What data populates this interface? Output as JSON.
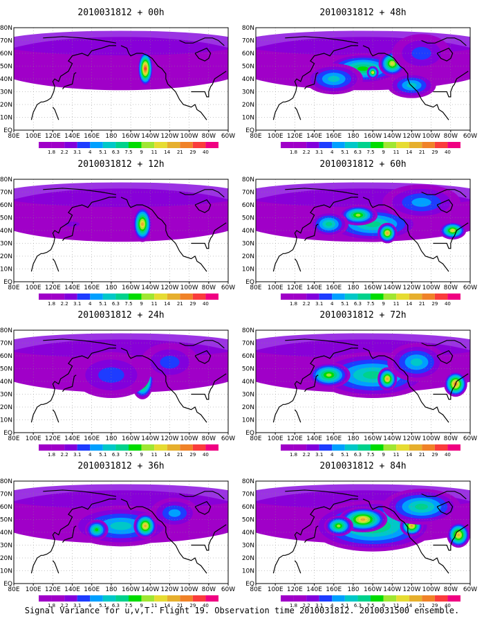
{
  "caption": "Signal Variance for u,v,T. Flight 19. Observation time 2010031812. 2010031500 ensemble.",
  "colorbar": {
    "labels": [
      "1.8",
      "2.2",
      "3.1",
      "4",
      "5.1",
      "6.3",
      "7.5",
      "9",
      "11",
      "14",
      "21",
      "29",
      "40"
    ],
    "colors": [
      "#a000c8",
      "#8200dc",
      "#1e3cff",
      "#00a0ff",
      "#00c8c8",
      "#00d28c",
      "#00dc00",
      "#a0e632",
      "#e6dc32",
      "#e6af2d",
      "#f08228",
      "#fa3c3c",
      "#f00082"
    ]
  },
  "axes": {
    "x_ticks": [
      "80E",
      "100E",
      "120E",
      "140E",
      "160E",
      "180",
      "160W",
      "140W",
      "120W",
      "100W",
      "80W",
      "60W"
    ],
    "y_ticks": [
      "EQ",
      "10N",
      "20N",
      "30N",
      "40N",
      "50N",
      "60N",
      "70N",
      "80N"
    ]
  },
  "chart_data": [
    {
      "type": "heatmap",
      "title": "2010031812 + 00h",
      "blobs": [
        {
          "lon": 215,
          "lat": 48,
          "rx": 8,
          "ry": 14,
          "level": 11
        }
      ]
    },
    {
      "type": "heatmap",
      "title": "2010031812 + 48h",
      "blobs": [
        {
          "lon": 190,
          "lat": 48,
          "rx": 40,
          "ry": 12,
          "level": 6
        },
        {
          "lon": 220,
          "lat": 52,
          "rx": 14,
          "ry": 10,
          "level": 8
        },
        {
          "lon": 200,
          "lat": 45,
          "rx": 6,
          "ry": 5,
          "level": 8
        },
        {
          "lon": 160,
          "lat": 40,
          "rx": 30,
          "ry": 12,
          "level": 4
        },
        {
          "lon": 240,
          "lat": 35,
          "rx": 25,
          "ry": 10,
          "level": 4
        },
        {
          "lon": 250,
          "lat": 60,
          "rx": 30,
          "ry": 15,
          "level": 2
        }
      ]
    },
    {
      "type": "heatmap",
      "title": "2010031812 + 12h",
      "blobs": [
        {
          "lon": 212,
          "lat": 45,
          "rx": 10,
          "ry": 14,
          "level": 9
        },
        {
          "lon": 140,
          "lat": 45,
          "rx": 15,
          "ry": 4,
          "level": 1
        }
      ]
    },
    {
      "type": "heatmap",
      "title": "2010031812 + 60h",
      "blobs": [
        {
          "lon": 200,
          "lat": 45,
          "rx": 50,
          "ry": 14,
          "level": 5
        },
        {
          "lon": 215,
          "lat": 38,
          "rx": 10,
          "ry": 8,
          "level": 9
        },
        {
          "lon": 185,
          "lat": 52,
          "rx": 20,
          "ry": 8,
          "level": 7
        },
        {
          "lon": 155,
          "lat": 45,
          "rx": 20,
          "ry": 10,
          "level": 5
        },
        {
          "lon": 282,
          "lat": 40,
          "rx": 14,
          "ry": 7,
          "level": 8
        },
        {
          "lon": 250,
          "lat": 62,
          "rx": 40,
          "ry": 14,
          "level": 3
        }
      ]
    },
    {
      "type": "heatmap",
      "title": "2010031812 + 24h",
      "blobs": [
        {
          "lon": 212,
          "lat": 42,
          "rx": 12,
          "ry": 16,
          "level": 10
        },
        {
          "lon": 180,
          "lat": 45,
          "rx": 40,
          "ry": 18,
          "level": 2
        },
        {
          "lon": 240,
          "lat": 55,
          "rx": 30,
          "ry": 15,
          "level": 2
        }
      ]
    },
    {
      "type": "heatmap",
      "title": "2010031812 + 72h",
      "blobs": [
        {
          "lon": 200,
          "lat": 45,
          "rx": 60,
          "ry": 18,
          "level": 5
        },
        {
          "lon": 215,
          "lat": 42,
          "rx": 10,
          "ry": 9,
          "level": 9
        },
        {
          "lon": 155,
          "lat": 45,
          "rx": 22,
          "ry": 10,
          "level": 7
        },
        {
          "lon": 285,
          "lat": 38,
          "rx": 12,
          "ry": 10,
          "level": 10
        },
        {
          "lon": 245,
          "lat": 55,
          "rx": 30,
          "ry": 15,
          "level": 4
        }
      ]
    },
    {
      "type": "heatmap",
      "title": "2010031812 + 36h",
      "blobs": [
        {
          "lon": 190,
          "lat": 45,
          "rx": 55,
          "ry": 16,
          "level": 4
        },
        {
          "lon": 215,
          "lat": 45,
          "rx": 12,
          "ry": 10,
          "level": 9
        },
        {
          "lon": 165,
          "lat": 42,
          "rx": 12,
          "ry": 8,
          "level": 6
        },
        {
          "lon": 245,
          "lat": 55,
          "rx": 25,
          "ry": 12,
          "level": 3
        }
      ]
    },
    {
      "type": "heatmap",
      "title": "2010031812 + 84h",
      "blobs": [
        {
          "lon": 200,
          "lat": 45,
          "rx": 65,
          "ry": 20,
          "level": 6
        },
        {
          "lon": 190,
          "lat": 50,
          "rx": 25,
          "ry": 10,
          "level": 9
        },
        {
          "lon": 165,
          "lat": 45,
          "rx": 15,
          "ry": 8,
          "level": 7
        },
        {
          "lon": 240,
          "lat": 45,
          "rx": 12,
          "ry": 8,
          "level": 9
        },
        {
          "lon": 288,
          "lat": 38,
          "rx": 12,
          "ry": 10,
          "level": 9
        },
        {
          "lon": 250,
          "lat": 60,
          "rx": 40,
          "ry": 14,
          "level": 5
        }
      ]
    }
  ]
}
